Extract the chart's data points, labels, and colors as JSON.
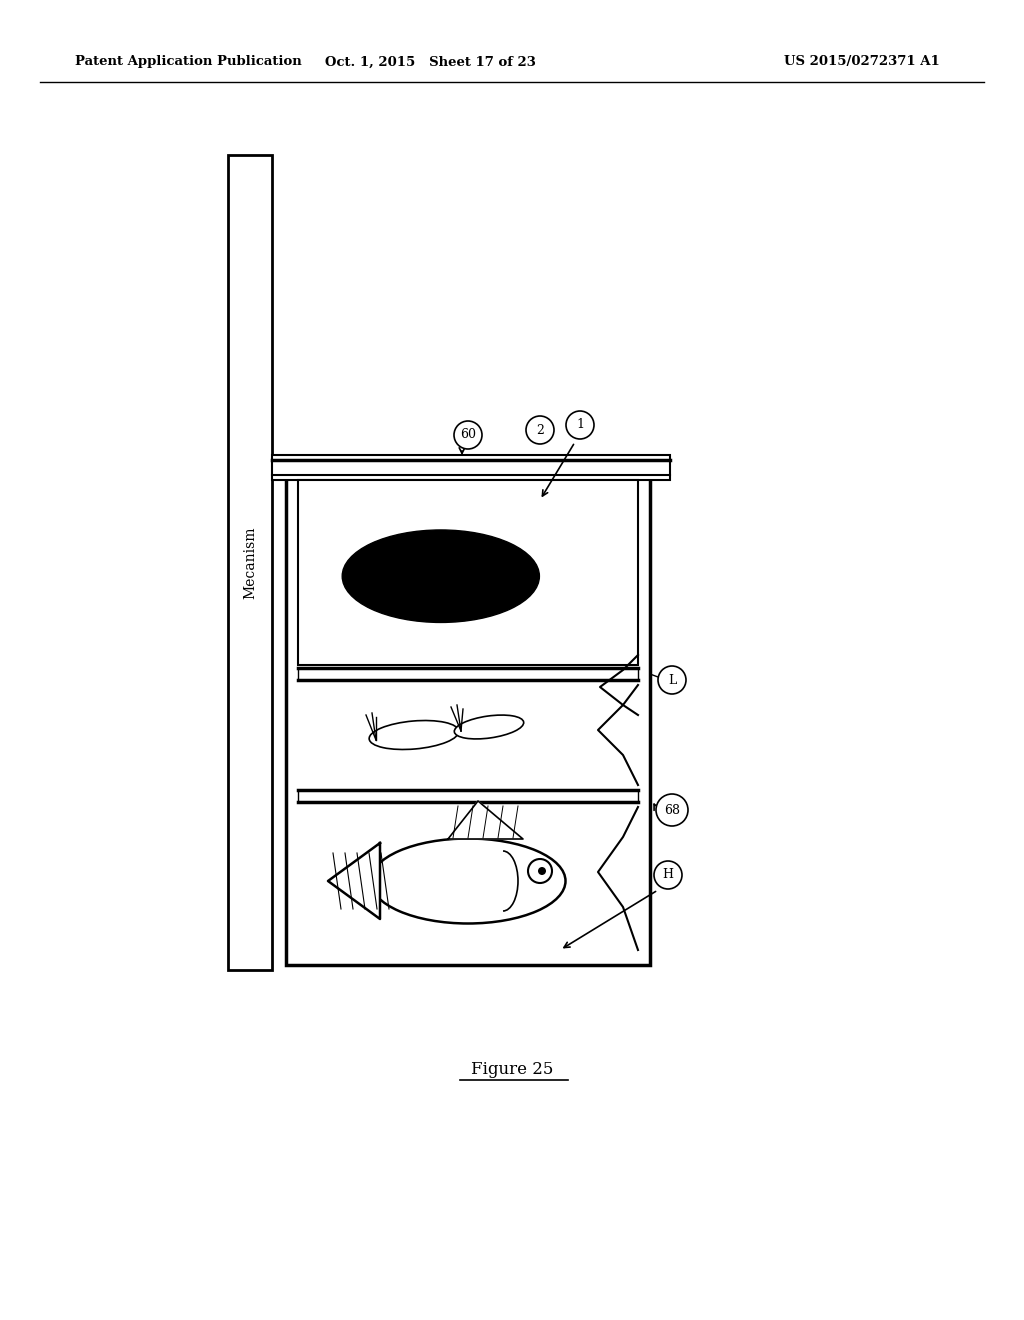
{
  "bg_color": "#ffffff",
  "header_left": "Patent Application Publication",
  "header_center": "Oct. 1, 2015   Sheet 17 of 23",
  "header_right": "US 2015/0272371 A1",
  "figure_label": "Figure 25",
  "mecanism_label": "Mecanism"
}
